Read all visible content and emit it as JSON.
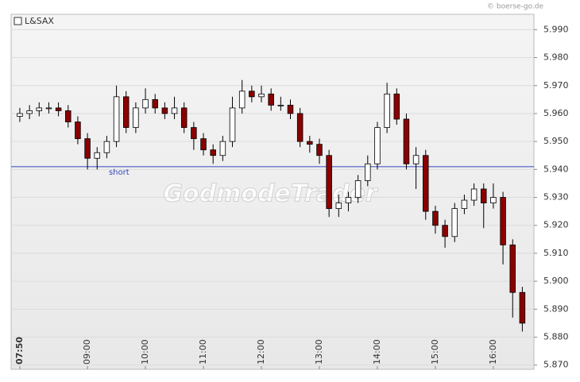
{
  "chart_data": {
    "type": "candlestick",
    "legend": "L&SAX",
    "copyright": "© boerse-go.de",
    "watermark": "GodmodeTrader",
    "x": [
      470,
      480,
      490,
      500,
      510,
      520,
      530,
      540,
      550,
      560,
      570,
      580,
      590,
      600,
      610,
      620,
      630,
      640,
      650,
      660,
      670,
      680,
      690,
      700,
      710,
      720,
      730,
      740,
      750,
      760,
      770,
      780,
      790,
      800,
      810,
      820,
      830,
      840,
      850,
      860,
      870,
      880,
      890,
      900,
      910,
      920,
      930,
      940,
      950,
      960,
      970,
      980,
      990
    ],
    "open": [
      5.959,
      5.96,
      5.961,
      5.962,
      5.962,
      5.961,
      5.957,
      5.951,
      5.944,
      5.946,
      5.95,
      5.966,
      5.955,
      5.962,
      5.965,
      5.962,
      5.96,
      5.962,
      5.955,
      5.951,
      5.947,
      5.945,
      5.95,
      5.962,
      5.968,
      5.966,
      5.967,
      5.963,
      5.963,
      5.96,
      5.95,
      5.949,
      5.945,
      5.926,
      5.928,
      5.93,
      5.936,
      5.942,
      5.955,
      5.967,
      5.958,
      5.942,
      5.945,
      5.925,
      5.92,
      5.916,
      5.926,
      5.929,
      5.933,
      5.928,
      5.93,
      5.913,
      5.896
    ],
    "high": [
      5.962,
      5.963,
      5.964,
      5.964,
      5.964,
      5.963,
      5.959,
      5.953,
      5.948,
      5.952,
      5.97,
      5.968,
      5.964,
      5.969,
      5.967,
      5.964,
      5.966,
      5.964,
      5.957,
      5.953,
      5.949,
      5.952,
      5.966,
      5.972,
      5.97,
      5.97,
      5.969,
      5.966,
      5.965,
      5.962,
      5.952,
      5.951,
      5.947,
      5.931,
      5.932,
      5.938,
      5.945,
      5.957,
      5.971,
      5.969,
      5.96,
      5.948,
      5.947,
      5.927,
      5.922,
      5.928,
      5.931,
      5.935,
      5.935,
      5.935,
      5.932,
      5.915,
      5.898
    ],
    "low": [
      5.957,
      5.958,
      5.959,
      5.96,
      5.959,
      5.955,
      5.949,
      5.94,
      5.94,
      5.944,
      5.948,
      5.953,
      5.953,
      5.96,
      5.96,
      5.958,
      5.958,
      5.953,
      5.947,
      5.945,
      5.942,
      5.943,
      5.948,
      5.96,
      5.964,
      5.964,
      5.961,
      5.961,
      5.958,
      5.948,
      5.946,
      5.942,
      5.923,
      5.923,
      5.925,
      5.928,
      5.934,
      5.94,
      5.953,
      5.956,
      5.94,
      5.933,
      5.922,
      5.917,
      5.912,
      5.914,
      5.924,
      5.927,
      5.919,
      5.926,
      5.906,
      5.887,
      5.882
    ],
    "close": [
      5.96,
      5.961,
      5.962,
      5.962,
      5.961,
      5.957,
      5.951,
      5.944,
      5.946,
      5.95,
      5.966,
      5.955,
      5.962,
      5.965,
      5.962,
      5.96,
      5.962,
      5.955,
      5.951,
      5.947,
      5.945,
      5.95,
      5.962,
      5.968,
      5.966,
      5.967,
      5.963,
      5.963,
      5.96,
      5.95,
      5.949,
      5.945,
      5.926,
      5.928,
      5.93,
      5.936,
      5.942,
      5.955,
      5.967,
      5.958,
      5.942,
      5.945,
      5.925,
      5.92,
      5.916,
      5.926,
      5.929,
      5.933,
      5.928,
      5.93,
      5.913,
      5.896,
      5.885
    ],
    "up_color": "#ffffff",
    "down_color": "#8b0000",
    "xlim": [
      461,
      1002
    ],
    "xticks": [
      {
        "value": 470,
        "label": "07:50"
      },
      {
        "value": 540,
        "label": "09:00"
      },
      {
        "value": 600,
        "label": "10:00"
      },
      {
        "value": 660,
        "label": "11:00"
      },
      {
        "value": 720,
        "label": "12:00"
      },
      {
        "value": 780,
        "label": "13:00"
      },
      {
        "value": 840,
        "label": "14:00"
      },
      {
        "value": 900,
        "label": "15:00"
      },
      {
        "value": 960,
        "label": "16:00"
      }
    ],
    "ylim": [
      5.8685,
      5.9955
    ],
    "yticks": [
      {
        "value": 5.87,
        "label": "5.870"
      },
      {
        "value": 5.88,
        "label": "5.880"
      },
      {
        "value": 5.89,
        "label": "5.890"
      },
      {
        "value": 5.9,
        "label": "5.900"
      },
      {
        "value": 5.91,
        "label": "5.910"
      },
      {
        "value": 5.92,
        "label": "5.920"
      },
      {
        "value": 5.93,
        "label": "5.930"
      },
      {
        "value": 5.94,
        "label": "5.940"
      },
      {
        "value": 5.95,
        "label": "5.950"
      },
      {
        "value": 5.96,
        "label": "5.960"
      },
      {
        "value": 5.97,
        "label": "5.970"
      },
      {
        "value": 5.98,
        "label": "5.980"
      },
      {
        "value": 5.99,
        "label": "5.990"
      }
    ],
    "hline": {
      "value": 5.941,
      "label": "short",
      "color": "#3344bb"
    },
    "grid": true
  }
}
